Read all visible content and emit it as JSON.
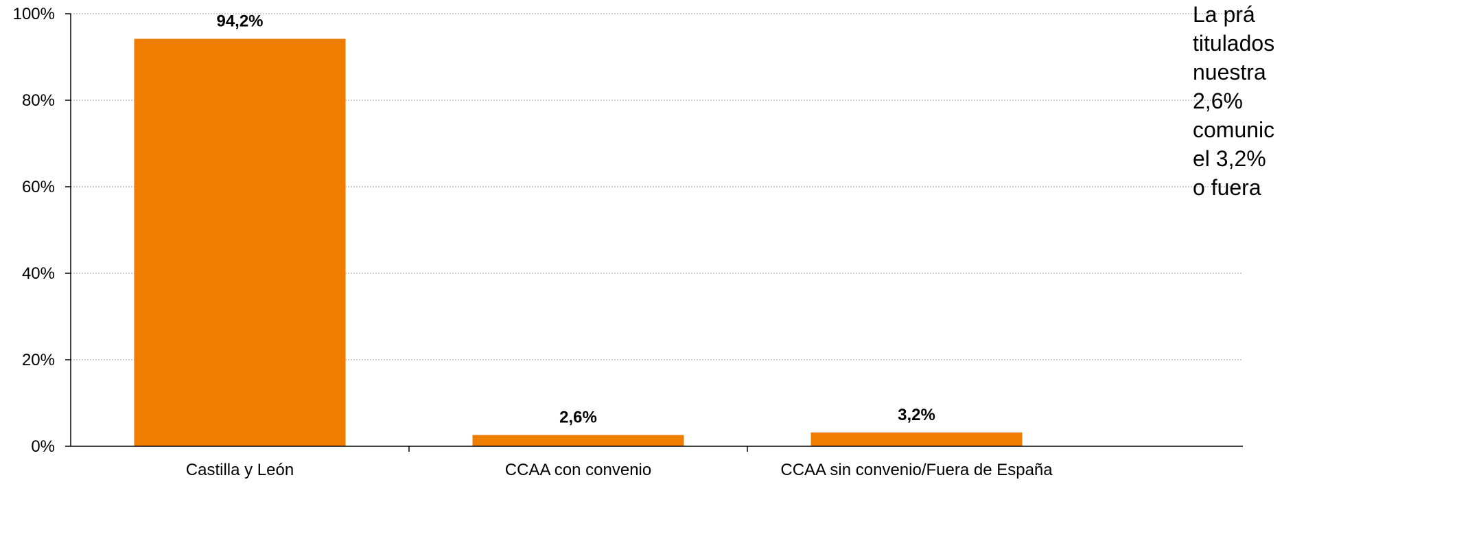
{
  "chart_data": {
    "type": "bar",
    "categories": [
      "Castilla y León",
      "CCAA con convenio",
      "CCAA sin convenio/Fuera de España"
    ],
    "values": [
      94.2,
      2.6,
      3.2
    ],
    "value_labels": [
      "94,2%",
      "2,6%",
      "3,2%"
    ],
    "ylim": [
      0,
      100
    ],
    "yticks": [
      0,
      20,
      40,
      60,
      80,
      100
    ],
    "ytick_labels": [
      "0%",
      "20%",
      "40%",
      "60%",
      "80%",
      "100%"
    ],
    "bar_color": "#EE7D00",
    "grid": true,
    "title": "",
    "xlabel": "",
    "ylabel": ""
  },
  "side_text": {
    "lines": [
      "La prá",
      "titulados",
      "nuestra",
      "2,6%",
      "comunic",
      "el 3,2%",
      "o fuera"
    ]
  }
}
